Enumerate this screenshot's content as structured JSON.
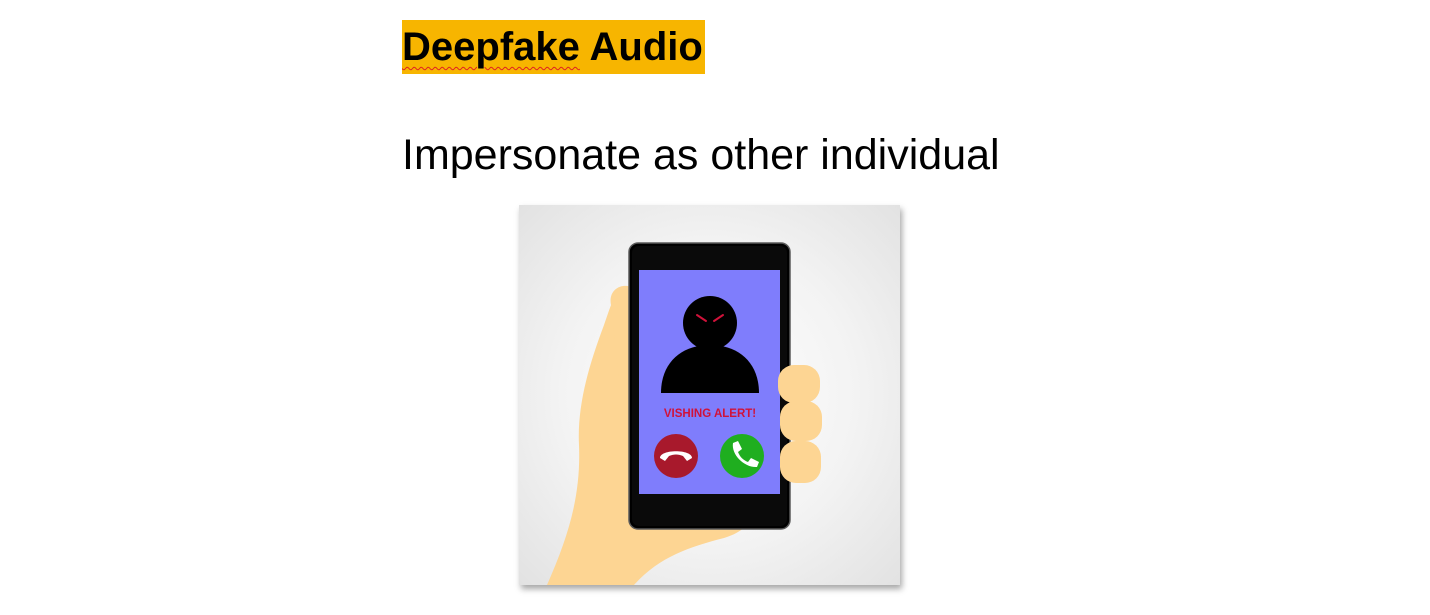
{
  "slide": {
    "title": {
      "highlighted_word": "Deepfake",
      "rest": " Audio",
      "highlight_color": "#f7b500"
    },
    "subtitle": "Impersonate as other individual",
    "illustration": {
      "alert_text": "VISHING ALERT!",
      "screen_color": "#7f7dfc",
      "decline_color": "#a8192c",
      "accept_color": "#1fae1f",
      "skin_color": "#fdd593"
    }
  }
}
